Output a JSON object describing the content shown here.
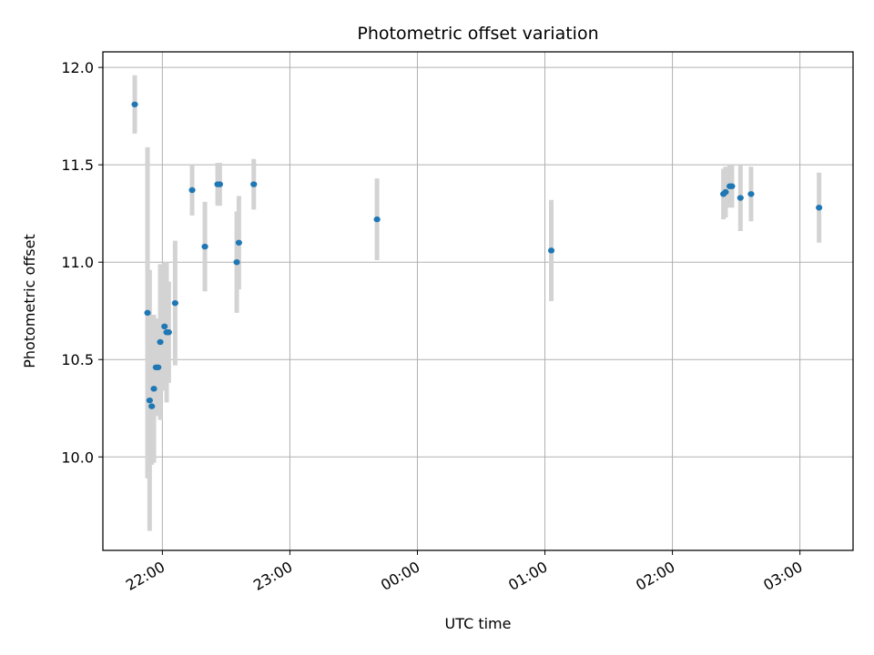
{
  "chart_data": {
    "type": "scatter",
    "title": "Photometric offset variation",
    "xlabel": "UTC time",
    "ylabel": "Photometric offset",
    "xlim": [
      "21:32",
      "03:25"
    ],
    "ylim": [
      9.52,
      12.08
    ],
    "grid": true,
    "x_ticks": [
      "22:00",
      "23:00",
      "00:00",
      "01:00",
      "02:00",
      "03:00"
    ],
    "y_ticks": [
      "10.0",
      "10.5",
      "11.0",
      "11.5",
      "12.0"
    ],
    "colors": {
      "point": "#1f77b4",
      "errorbar": "#d3d3d3",
      "grid": "#b0b0b0"
    },
    "points": [
      {
        "x": "21:47",
        "y": 11.81,
        "err": 0.15
      },
      {
        "x": "21:53",
        "y": 10.74,
        "err": 0.85
      },
      {
        "x": "21:54",
        "y": 10.29,
        "err": 0.67
      },
      {
        "x": "21:55",
        "y": 10.26,
        "err": 0.3
      },
      {
        "x": "21:56",
        "y": 10.35,
        "err": 0.38
      },
      {
        "x": "21:57",
        "y": 10.46,
        "err": 0.25
      },
      {
        "x": "21:58",
        "y": 10.46,
        "err": 0.25
      },
      {
        "x": "21:59",
        "y": 10.59,
        "err": 0.4
      },
      {
        "x": "22:01",
        "y": 10.67,
        "err": 0.33
      },
      {
        "x": "22:02",
        "y": 10.64,
        "err": 0.36
      },
      {
        "x": "22:03",
        "y": 10.64,
        "err": 0.26
      },
      {
        "x": "22:06",
        "y": 10.79,
        "err": 0.32
      },
      {
        "x": "22:14",
        "y": 11.37,
        "err": 0.13
      },
      {
        "x": "22:20",
        "y": 11.08,
        "err": 0.23
      },
      {
        "x": "22:26",
        "y": 11.4,
        "err": 0.11
      },
      {
        "x": "22:27",
        "y": 11.4,
        "err": 0.11
      },
      {
        "x": "22:35",
        "y": 11.0,
        "err": 0.26
      },
      {
        "x": "22:36",
        "y": 11.1,
        "err": 0.24
      },
      {
        "x": "22:43",
        "y": 11.4,
        "err": 0.13
      },
      {
        "x": "23:41",
        "y": 11.22,
        "err": 0.21
      },
      {
        "x": "01:03",
        "y": 11.06,
        "err": 0.26
      },
      {
        "x": "02:24",
        "y": 11.35,
        "err": 0.13
      },
      {
        "x": "02:25",
        "y": 11.36,
        "err": 0.13
      },
      {
        "x": "02:27",
        "y": 11.39,
        "err": 0.11
      },
      {
        "x": "02:28",
        "y": 11.39,
        "err": 0.11
      },
      {
        "x": "02:32",
        "y": 11.33,
        "err": 0.17
      },
      {
        "x": "02:37",
        "y": 11.35,
        "err": 0.14
      },
      {
        "x": "03:09",
        "y": 11.28,
        "err": 0.18
      }
    ]
  }
}
